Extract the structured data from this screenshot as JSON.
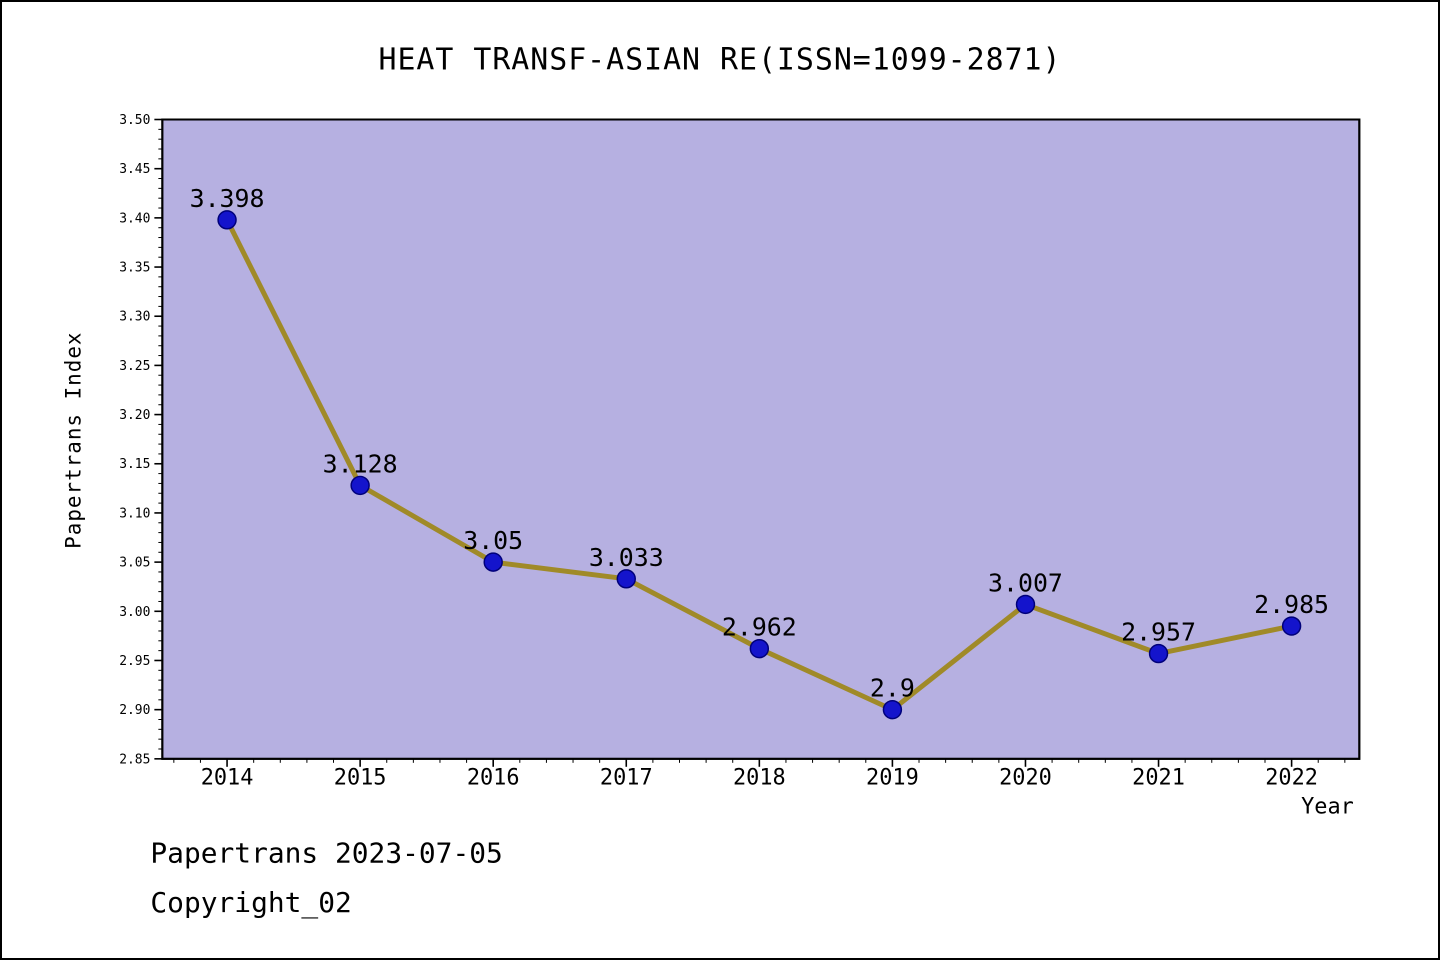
{
  "title": "HEAT TRANSF-ASIAN RE(ISSN=1099-2871)",
  "footer": {
    "line1": "Papertrans 2023-07-05",
    "line2": "Copyright_02"
  },
  "chart_data": {
    "type": "line",
    "title": "HEAT TRANSF-ASIAN RE(ISSN=1099-2871)",
    "xlabel": "Year",
    "ylabel": "Papertrans Index",
    "categories": [
      "2014",
      "2015",
      "2016",
      "2017",
      "2018",
      "2019",
      "2020",
      "2021",
      "2022"
    ],
    "values": [
      3.398,
      3.128,
      3.05,
      3.033,
      2.962,
      2.9,
      3.007,
      2.957,
      2.985
    ],
    "labels": [
      "3.398",
      "3.128",
      "3.05",
      "3.033",
      "2.962",
      "2.9",
      "3.007",
      "2.957",
      "2.985"
    ],
    "ylim": [
      2.85,
      3.5
    ],
    "ytick_step": 0.05,
    "yticks": [
      "2.85",
      "2.90",
      "2.95",
      "3.00",
      "3.05",
      "3.10",
      "3.15",
      "3.20",
      "3.25",
      "3.30",
      "3.35",
      "3.40",
      "3.45",
      "3.50"
    ],
    "grid": false,
    "legend": "none",
    "colors": {
      "plot_bg": "#b6b0e1",
      "line": "#a08a28",
      "marker": "#1414cc",
      "marker_edge": "#00007a",
      "text": "#000000",
      "frame": "#000000"
    }
  }
}
